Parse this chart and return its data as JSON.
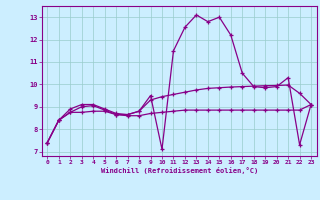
{
  "xlabel": "Windchill (Refroidissement éolien,°C)",
  "background_color": "#cceeff",
  "line_color": "#880088",
  "grid_color": "#99cccc",
  "xlim": [
    -0.5,
    23.5
  ],
  "ylim": [
    6.8,
    13.5
  ],
  "xticks": [
    0,
    1,
    2,
    3,
    4,
    5,
    6,
    7,
    8,
    9,
    10,
    11,
    12,
    13,
    14,
    15,
    16,
    17,
    18,
    19,
    20,
    21,
    22,
    23
  ],
  "yticks": [
    7,
    8,
    9,
    10,
    11,
    12,
    13
  ],
  "line1_x": [
    0,
    1,
    2,
    3,
    4,
    5,
    6,
    7,
    8,
    9,
    10,
    11,
    12,
    13,
    14,
    15,
    16,
    17,
    18,
    19,
    20,
    21,
    22,
    23
  ],
  "line1_y": [
    7.4,
    8.4,
    8.9,
    9.1,
    9.1,
    8.9,
    8.7,
    8.65,
    8.8,
    9.5,
    7.1,
    11.5,
    12.55,
    13.1,
    12.8,
    13.0,
    12.2,
    10.5,
    9.9,
    9.85,
    9.9,
    10.3,
    7.3,
    9.1
  ],
  "line2_x": [
    0,
    1,
    2,
    3,
    4,
    5,
    6,
    7,
    8,
    9,
    10,
    11,
    12,
    13,
    14,
    15,
    16,
    17,
    18,
    19,
    20,
    21,
    22,
    23
  ],
  "line2_y": [
    7.4,
    8.4,
    8.75,
    9.0,
    9.05,
    8.85,
    8.65,
    8.65,
    8.8,
    9.3,
    9.45,
    9.55,
    9.65,
    9.75,
    9.82,
    9.85,
    9.88,
    9.9,
    9.92,
    9.94,
    9.95,
    9.97,
    9.6,
    9.1
  ],
  "line3_x": [
    0,
    1,
    2,
    3,
    4,
    5,
    6,
    7,
    8,
    9,
    10,
    11,
    12,
    13,
    14,
    15,
    16,
    17,
    18,
    19,
    20,
    21,
    22,
    23
  ],
  "line3_y": [
    7.4,
    8.4,
    8.75,
    8.75,
    8.8,
    8.8,
    8.65,
    8.6,
    8.6,
    8.7,
    8.75,
    8.8,
    8.85,
    8.85,
    8.85,
    8.85,
    8.85,
    8.85,
    8.85,
    8.85,
    8.85,
    8.85,
    8.85,
    9.1
  ]
}
